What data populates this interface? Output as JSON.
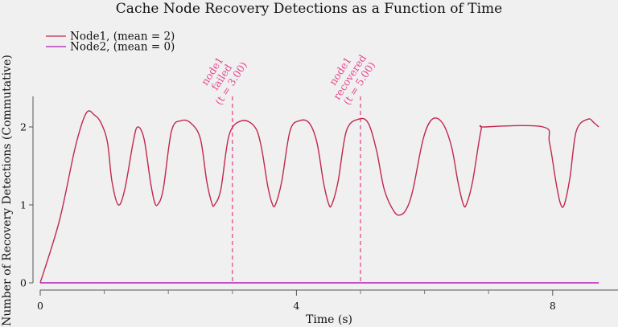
{
  "chart_data": {
    "type": "line",
    "title": "Cache Node Recovery Detections as a Function of Time",
    "xlabel": "Time (s)",
    "ylabel": "Number of Recovery Detections (Commutative)",
    "xlim": [
      0,
      8.8
    ],
    "ylim": [
      0,
      2.4
    ],
    "x_ticks": [
      0,
      4,
      8
    ],
    "x_tick_labels": [
      "0",
      "4",
      "8"
    ],
    "x_minor_ticks": [
      1,
      2,
      3,
      5,
      6,
      7
    ],
    "y_ticks": [
      0,
      1,
      2
    ],
    "y_tick_labels": [
      "0",
      "1",
      "2"
    ],
    "legend": {
      "position": "top-left"
    },
    "grid": false,
    "series": [
      {
        "name": "Node1, (mean = 2)",
        "color": "#c0284e",
        "points": [
          [
            0,
            0
          ],
          [
            0.3,
            0.8
          ],
          [
            0.55,
            1.75
          ],
          [
            0.72,
            2.18
          ],
          [
            0.85,
            2.15
          ],
          [
            0.95,
            2.05
          ],
          [
            1.05,
            1.8
          ],
          [
            1.12,
            1.3
          ],
          [
            1.22,
            1.0
          ],
          [
            1.32,
            1.2
          ],
          [
            1.45,
            1.8
          ],
          [
            1.52,
            2.0
          ],
          [
            1.62,
            1.85
          ],
          [
            1.72,
            1.3
          ],
          [
            1.78,
            1.05
          ],
          [
            1.83,
            1.0
          ],
          [
            1.92,
            1.2
          ],
          [
            2.05,
            1.95
          ],
          [
            2.2,
            2.08
          ],
          [
            2.35,
            2.05
          ],
          [
            2.5,
            1.85
          ],
          [
            2.6,
            1.3
          ],
          [
            2.68,
            1.02
          ],
          [
            2.72,
            1.0
          ],
          [
            2.82,
            1.2
          ],
          [
            2.95,
            1.9
          ],
          [
            3.15,
            2.08
          ],
          [
            3.35,
            2.0
          ],
          [
            3.45,
            1.75
          ],
          [
            3.55,
            1.25
          ],
          [
            3.62,
            1.02
          ],
          [
            3.67,
            1.0
          ],
          [
            3.77,
            1.3
          ],
          [
            3.9,
            1.95
          ],
          [
            4.05,
            2.08
          ],
          [
            4.2,
            2.05
          ],
          [
            4.32,
            1.8
          ],
          [
            4.42,
            1.3
          ],
          [
            4.5,
            1.02
          ],
          [
            4.55,
            1.0
          ],
          [
            4.65,
            1.3
          ],
          [
            4.78,
            1.95
          ],
          [
            4.97,
            2.1
          ],
          [
            5.12,
            2.05
          ],
          [
            5.25,
            1.7
          ],
          [
            5.37,
            1.2
          ],
          [
            5.52,
            0.92
          ],
          [
            5.62,
            0.87
          ],
          [
            5.72,
            0.95
          ],
          [
            5.82,
            1.2
          ],
          [
            5.98,
            1.85
          ],
          [
            6.12,
            2.1
          ],
          [
            6.28,
            2.05
          ],
          [
            6.42,
            1.75
          ],
          [
            6.52,
            1.3
          ],
          [
            6.6,
            1.02
          ],
          [
            6.65,
            1.0
          ],
          [
            6.75,
            1.3
          ],
          [
            6.88,
            1.95
          ],
          [
            6.95,
            2.0
          ],
          [
            7.85,
            2.0
          ],
          [
            7.95,
            1.8
          ],
          [
            8.05,
            1.3
          ],
          [
            8.12,
            1.02
          ],
          [
            8.18,
            1.0
          ],
          [
            8.27,
            1.35
          ],
          [
            8.37,
            1.95
          ],
          [
            8.55,
            2.1
          ],
          [
            8.65,
            2.05
          ],
          [
            8.72,
            2.0
          ]
        ]
      },
      {
        "name": "Node2, (mean = 0)",
        "color": "#b01ab4",
        "points": [
          [
            0,
            0
          ],
          [
            8.72,
            0
          ]
        ]
      }
    ],
    "annotations": [
      {
        "x": 3.0,
        "lines": [
          "node1",
          "failed",
          "(t = 3.00)"
        ],
        "color": "#e8498f"
      },
      {
        "x": 5.0,
        "lines": [
          "node1",
          "recovered",
          "(t = 5.00)"
        ],
        "color": "#e8498f"
      }
    ]
  }
}
